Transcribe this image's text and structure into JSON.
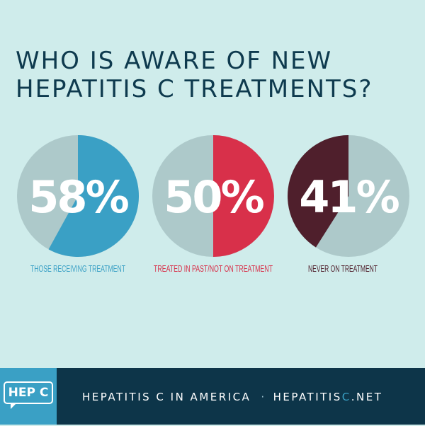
{
  "header": {
    "title_line1": "WHO IS AWARE OF NEW",
    "title_line2": "HEPATITIS C TREATMENTS?"
  },
  "chart_data": {
    "type": "pie",
    "charts": [
      {
        "label": "THOSE RECEIVING TREATMENT",
        "value": 58,
        "display": "58%",
        "color": "#3aa0c5",
        "rest_color": "#adc9ca",
        "label_color": "#3aa0c5"
      },
      {
        "label": "TREATED IN PAST/NOT ON TREATMENT",
        "value": 50,
        "display": "50%",
        "color": "#d8304a",
        "rest_color": "#adc9ca",
        "label_color": "#d8304a"
      },
      {
        "label": "NEVER ON TREATMENT",
        "value": 41,
        "display": "41%",
        "color": "#4f1f2c",
        "rest_color": "#adc9ca",
        "label_color": "#4f1f2c"
      }
    ]
  },
  "footer": {
    "logo_text": "HEP C",
    "tagline": "HEPATITIS C IN AMERICA",
    "separator": "·",
    "site_main": "HEPATITIS",
    "site_accent": "C",
    "site_tail": ".NET"
  }
}
